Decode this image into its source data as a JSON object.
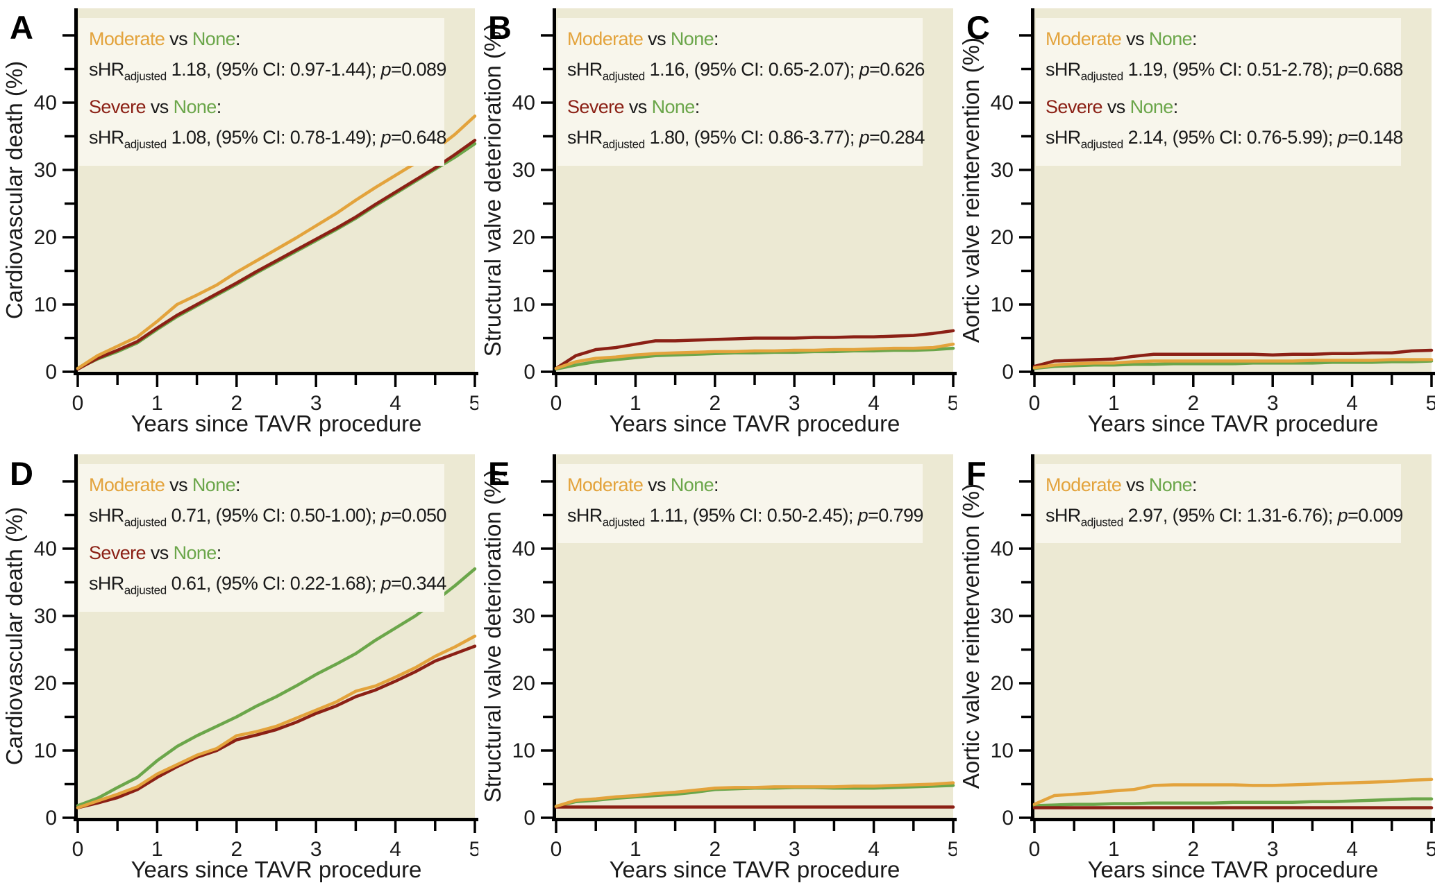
{
  "figure": {
    "xlabel": "Years since TAVR procedure",
    "x_tick_labels": [
      "0",
      "1",
      "2",
      "3",
      "4",
      "5"
    ],
    "y_tick_labels": [
      "0",
      "10",
      "20",
      "30",
      "40"
    ],
    "vs_text": " vs ",
    "colon_text": ":",
    "shr_label": "sHR",
    "shr_subscript": "adjusted",
    "p_label": "p",
    "colors": {
      "moderate": "#E3A33C",
      "severe": "#8B2015",
      "none": "#6BA64A",
      "plot_bg": "#ECE9D3",
      "annotation_bg": "#F8F6EC",
      "axis": "#000000",
      "text": "#1a1a1a"
    }
  },
  "chart_data": [
    {
      "panel": "A",
      "type": "line",
      "ylabel": "Cardiovascular death (%)",
      "xlabel": "Years since TAVR procedure",
      "xlim": [
        0,
        5
      ],
      "ylim": [
        0,
        54
      ],
      "x_ticks": [
        0,
        1,
        2,
        3,
        4,
        5
      ],
      "y_ticks": [
        0,
        10,
        20,
        30,
        40
      ],
      "annotations": [
        {
          "group_a": "Moderate",
          "group_b": "None",
          "estimate": " 1.18, (95% CI: 0.97-1.44); ",
          "p_value": "=0.089"
        },
        {
          "group_a": "Severe",
          "group_b": "None",
          "estimate": " 1.08, (95% CI: 0.78-1.49); ",
          "p_value": "=0.648"
        }
      ],
      "x": [
        0,
        0.25,
        0.5,
        0.75,
        1,
        1.25,
        1.5,
        1.75,
        2,
        2.25,
        2.5,
        2.75,
        3,
        3.25,
        3.5,
        3.75,
        4,
        4.25,
        4.5,
        4.75,
        5
      ],
      "series": [
        {
          "name": "None",
          "color_key": "none",
          "y": [
            0.5,
            1.9,
            3.0,
            4.3,
            6.3,
            8.2,
            9.8,
            11.4,
            13.0,
            14.7,
            16.3,
            17.9,
            19.5,
            21.1,
            22.8,
            24.7,
            26.5,
            28.3,
            30.1,
            31.9,
            33.9
          ]
        },
        {
          "name": "Severe",
          "color_key": "severe",
          "y": [
            0.4,
            2.0,
            3.2,
            4.5,
            6.5,
            8.4,
            10.0,
            11.6,
            13.2,
            14.9,
            16.5,
            18.1,
            19.7,
            21.3,
            23.0,
            24.9,
            26.7,
            28.5,
            30.3,
            32.3,
            34.4
          ]
        },
        {
          "name": "Moderate",
          "color_key": "moderate",
          "y": [
            0.5,
            2.4,
            3.8,
            5.2,
            7.5,
            10.0,
            11.4,
            12.9,
            14.8,
            16.5,
            18.2,
            19.9,
            21.7,
            23.5,
            25.5,
            27.4,
            29.2,
            31.0,
            33.0,
            35.3,
            38.0
          ]
        }
      ]
    },
    {
      "panel": "B",
      "type": "line",
      "ylabel": "Structural valve deterioration (%)",
      "xlabel": "Years since TAVR procedure",
      "xlim": [
        0,
        5
      ],
      "ylim": [
        0,
        54
      ],
      "x_ticks": [
        0,
        1,
        2,
        3,
        4,
        5
      ],
      "y_ticks": [
        0,
        10,
        20,
        30,
        40
      ],
      "annotations": [
        {
          "group_a": "Moderate",
          "group_b": "None",
          "estimate": " 1.16, (95% CI: 0.65-2.07); ",
          "p_value": "=0.626"
        },
        {
          "group_a": "Severe",
          "group_b": "None",
          "estimate": " 1.80, (95% CI: 0.86-3.77); ",
          "p_value": "=0.284"
        }
      ],
      "x": [
        0,
        0.25,
        0.5,
        0.75,
        1,
        1.25,
        1.5,
        1.75,
        2,
        2.25,
        2.5,
        2.75,
        3,
        3.25,
        3.5,
        3.75,
        4,
        4.25,
        4.5,
        4.75,
        5
      ],
      "series": [
        {
          "name": "None",
          "color_key": "none",
          "y": [
            0.4,
            1.0,
            1.5,
            1.8,
            2.1,
            2.4,
            2.5,
            2.6,
            2.7,
            2.8,
            2.8,
            2.9,
            2.9,
            3.0,
            3.0,
            3.1,
            3.1,
            3.2,
            3.2,
            3.3,
            3.5
          ]
        },
        {
          "name": "Severe",
          "color_key": "severe",
          "y": [
            0.5,
            2.4,
            3.3,
            3.6,
            4.1,
            4.6,
            4.6,
            4.7,
            4.8,
            4.9,
            5.0,
            5.0,
            5.0,
            5.1,
            5.1,
            5.2,
            5.2,
            5.3,
            5.4,
            5.7,
            6.1
          ]
        },
        {
          "name": "Moderate",
          "color_key": "moderate",
          "y": [
            0.5,
            1.5,
            2.0,
            2.2,
            2.5,
            2.7,
            2.8,
            2.9,
            3.0,
            3.0,
            3.1,
            3.1,
            3.2,
            3.2,
            3.3,
            3.3,
            3.4,
            3.5,
            3.5,
            3.6,
            4.1
          ]
        }
      ]
    },
    {
      "panel": "C",
      "type": "line",
      "ylabel": "Aortic valve reintervention (%)",
      "xlabel": "Years since TAVR procedure",
      "xlim": [
        0,
        5
      ],
      "ylim": [
        0,
        54
      ],
      "x_ticks": [
        0,
        1,
        2,
        3,
        4,
        5
      ],
      "y_ticks": [
        0,
        10,
        20,
        30,
        40
      ],
      "annotations": [
        {
          "group_a": "Moderate",
          "group_b": "None",
          "estimate": " 1.19, (95% CI: 0.51-2.78); ",
          "p_value": "=0.688"
        },
        {
          "group_a": "Severe",
          "group_b": "None",
          "estimate": " 2.14, (95% CI: 0.76-5.99); ",
          "p_value": "=0.148"
        }
      ],
      "x": [
        0,
        0.25,
        0.5,
        0.75,
        1,
        1.25,
        1.5,
        1.75,
        2,
        2.25,
        2.5,
        2.75,
        3,
        3.25,
        3.5,
        3.75,
        4,
        4.25,
        4.5,
        4.75,
        5
      ],
      "series": [
        {
          "name": "None",
          "color_key": "none",
          "y": [
            0.5,
            0.8,
            0.9,
            1.0,
            1.0,
            1.1,
            1.1,
            1.2,
            1.2,
            1.2,
            1.2,
            1.3,
            1.3,
            1.3,
            1.3,
            1.4,
            1.4,
            1.4,
            1.5,
            1.5,
            1.6
          ]
        },
        {
          "name": "Severe",
          "color_key": "severe",
          "y": [
            0.8,
            1.6,
            1.7,
            1.8,
            1.9,
            2.3,
            2.6,
            2.6,
            2.6,
            2.6,
            2.6,
            2.6,
            2.5,
            2.6,
            2.6,
            2.7,
            2.7,
            2.8,
            2.8,
            3.1,
            3.2
          ]
        },
        {
          "name": "Moderate",
          "color_key": "moderate",
          "y": [
            0.6,
            1.0,
            1.2,
            1.3,
            1.3,
            1.5,
            1.6,
            1.6,
            1.6,
            1.6,
            1.6,
            1.6,
            1.6,
            1.6,
            1.7,
            1.7,
            1.7,
            1.7,
            1.8,
            1.8,
            1.8
          ]
        }
      ]
    },
    {
      "panel": "D",
      "type": "line",
      "ylabel": "Cardiovascular death (%)",
      "xlabel": "Years since TAVR procedure",
      "xlim": [
        0,
        5
      ],
      "ylim": [
        0,
        54
      ],
      "x_ticks": [
        0,
        1,
        2,
        3,
        4,
        5
      ],
      "y_ticks": [
        0,
        10,
        20,
        30,
        40
      ],
      "annotations": [
        {
          "group_a": "Moderate",
          "group_b": "None",
          "estimate": " 0.71, (95% CI: 0.50-1.00); ",
          "p_value": "=0.050"
        },
        {
          "group_a": "Severe",
          "group_b": "None",
          "estimate": " 0.61, (95% CI: 0.22-1.68); ",
          "p_value": "=0.344"
        }
      ],
      "x": [
        0,
        0.25,
        0.5,
        0.75,
        1,
        1.25,
        1.5,
        1.75,
        2,
        2.25,
        2.5,
        2.75,
        3,
        3.25,
        3.5,
        3.75,
        4,
        4.25,
        4.5,
        4.75,
        5
      ],
      "series": [
        {
          "name": "None",
          "color_key": "none",
          "y": [
            1.8,
            2.9,
            4.5,
            6.0,
            8.5,
            10.6,
            12.2,
            13.6,
            15.0,
            16.6,
            18.0,
            19.6,
            21.3,
            22.8,
            24.4,
            26.4,
            28.2,
            30.0,
            32.2,
            34.5,
            37.0
          ]
        },
        {
          "name": "Severe",
          "color_key": "severe",
          "y": [
            1.5,
            2.2,
            3.0,
            4.2,
            6.0,
            7.6,
            9.0,
            10.0,
            11.6,
            12.3,
            13.1,
            14.2,
            15.5,
            16.6,
            18.0,
            19.0,
            20.3,
            21.7,
            23.3,
            24.4,
            25.5
          ]
        },
        {
          "name": "Moderate",
          "color_key": "moderate",
          "y": [
            1.5,
            2.5,
            3.5,
            4.6,
            6.5,
            7.9,
            9.3,
            10.3,
            12.2,
            12.8,
            13.6,
            14.8,
            16.0,
            17.2,
            18.8,
            19.6,
            20.9,
            22.3,
            24.0,
            25.4,
            27.0
          ]
        }
      ]
    },
    {
      "panel": "E",
      "type": "line",
      "ylabel": "Structural valve deterioration (%)",
      "xlabel": "Years since TAVR procedure",
      "xlim": [
        0,
        5
      ],
      "ylim": [
        0,
        54
      ],
      "x_ticks": [
        0,
        1,
        2,
        3,
        4,
        5
      ],
      "y_ticks": [
        0,
        10,
        20,
        30,
        40
      ],
      "annotations": [
        {
          "group_a": "Moderate",
          "group_b": "None",
          "estimate": " 1.11, (95% CI: 0.50-2.45); ",
          "p_value": "=0.799"
        }
      ],
      "x": [
        0,
        0.25,
        0.5,
        0.75,
        1,
        1.25,
        1.5,
        1.75,
        2,
        2.25,
        2.5,
        2.75,
        3,
        3.25,
        3.5,
        3.75,
        4,
        4.25,
        4.5,
        4.75,
        5
      ],
      "series": [
        {
          "name": "None",
          "color_key": "none",
          "y": [
            1.7,
            2.4,
            2.6,
            2.9,
            3.1,
            3.3,
            3.5,
            3.8,
            4.2,
            4.3,
            4.4,
            4.4,
            4.5,
            4.5,
            4.4,
            4.4,
            4.4,
            4.5,
            4.6,
            4.7,
            4.8
          ]
        },
        {
          "name": "Severe",
          "color_key": "severe",
          "y": [
            1.6,
            1.6,
            1.6,
            1.6,
            1.6,
            1.6,
            1.6,
            1.6,
            1.6,
            1.6,
            1.6,
            1.6,
            1.6,
            1.6,
            1.6,
            1.6,
            1.6,
            1.6,
            1.6,
            1.6,
            1.6
          ]
        },
        {
          "name": "Moderate",
          "color_key": "moderate",
          "y": [
            1.7,
            2.6,
            2.8,
            3.1,
            3.3,
            3.6,
            3.8,
            4.1,
            4.4,
            4.5,
            4.5,
            4.6,
            4.6,
            4.6,
            4.6,
            4.7,
            4.7,
            4.8,
            4.9,
            5.0,
            5.2
          ]
        }
      ]
    },
    {
      "panel": "F",
      "type": "line",
      "ylabel": "Aortic valve reintervention (%)",
      "xlabel": "Years since TAVR procedure",
      "xlim": [
        0,
        5
      ],
      "ylim": [
        0,
        54
      ],
      "x_ticks": [
        0,
        1,
        2,
        3,
        4,
        5
      ],
      "y_ticks": [
        0,
        10,
        20,
        30,
        40
      ],
      "annotations": [
        {
          "group_a": "Moderate",
          "group_b": "None",
          "estimate": " 2.97, (95% CI: 1.31-6.76); ",
          "p_value": "=0.009"
        }
      ],
      "x": [
        0,
        0.25,
        0.5,
        0.75,
        1,
        1.25,
        1.5,
        1.75,
        2,
        2.25,
        2.5,
        2.75,
        3,
        3.25,
        3.5,
        3.75,
        4,
        4.25,
        4.5,
        4.75,
        5
      ],
      "series": [
        {
          "name": "None",
          "color_key": "none",
          "y": [
            1.8,
            1.9,
            2.0,
            2.0,
            2.1,
            2.1,
            2.2,
            2.2,
            2.2,
            2.2,
            2.3,
            2.3,
            2.3,
            2.3,
            2.4,
            2.4,
            2.5,
            2.6,
            2.7,
            2.8,
            2.8
          ]
        },
        {
          "name": "Severe",
          "color_key": "severe",
          "y": [
            1.5,
            1.5,
            1.5,
            1.5,
            1.5,
            1.5,
            1.5,
            1.5,
            1.5,
            1.5,
            1.5,
            1.5,
            1.5,
            1.5,
            1.5,
            1.5,
            1.5,
            1.5,
            1.5,
            1.5,
            1.5
          ]
        },
        {
          "name": "Moderate",
          "color_key": "moderate",
          "y": [
            2.0,
            3.3,
            3.5,
            3.7,
            4.0,
            4.2,
            4.8,
            4.9,
            4.9,
            4.9,
            4.9,
            4.8,
            4.8,
            4.9,
            5.0,
            5.1,
            5.2,
            5.3,
            5.4,
            5.6,
            5.7
          ]
        }
      ]
    }
  ]
}
